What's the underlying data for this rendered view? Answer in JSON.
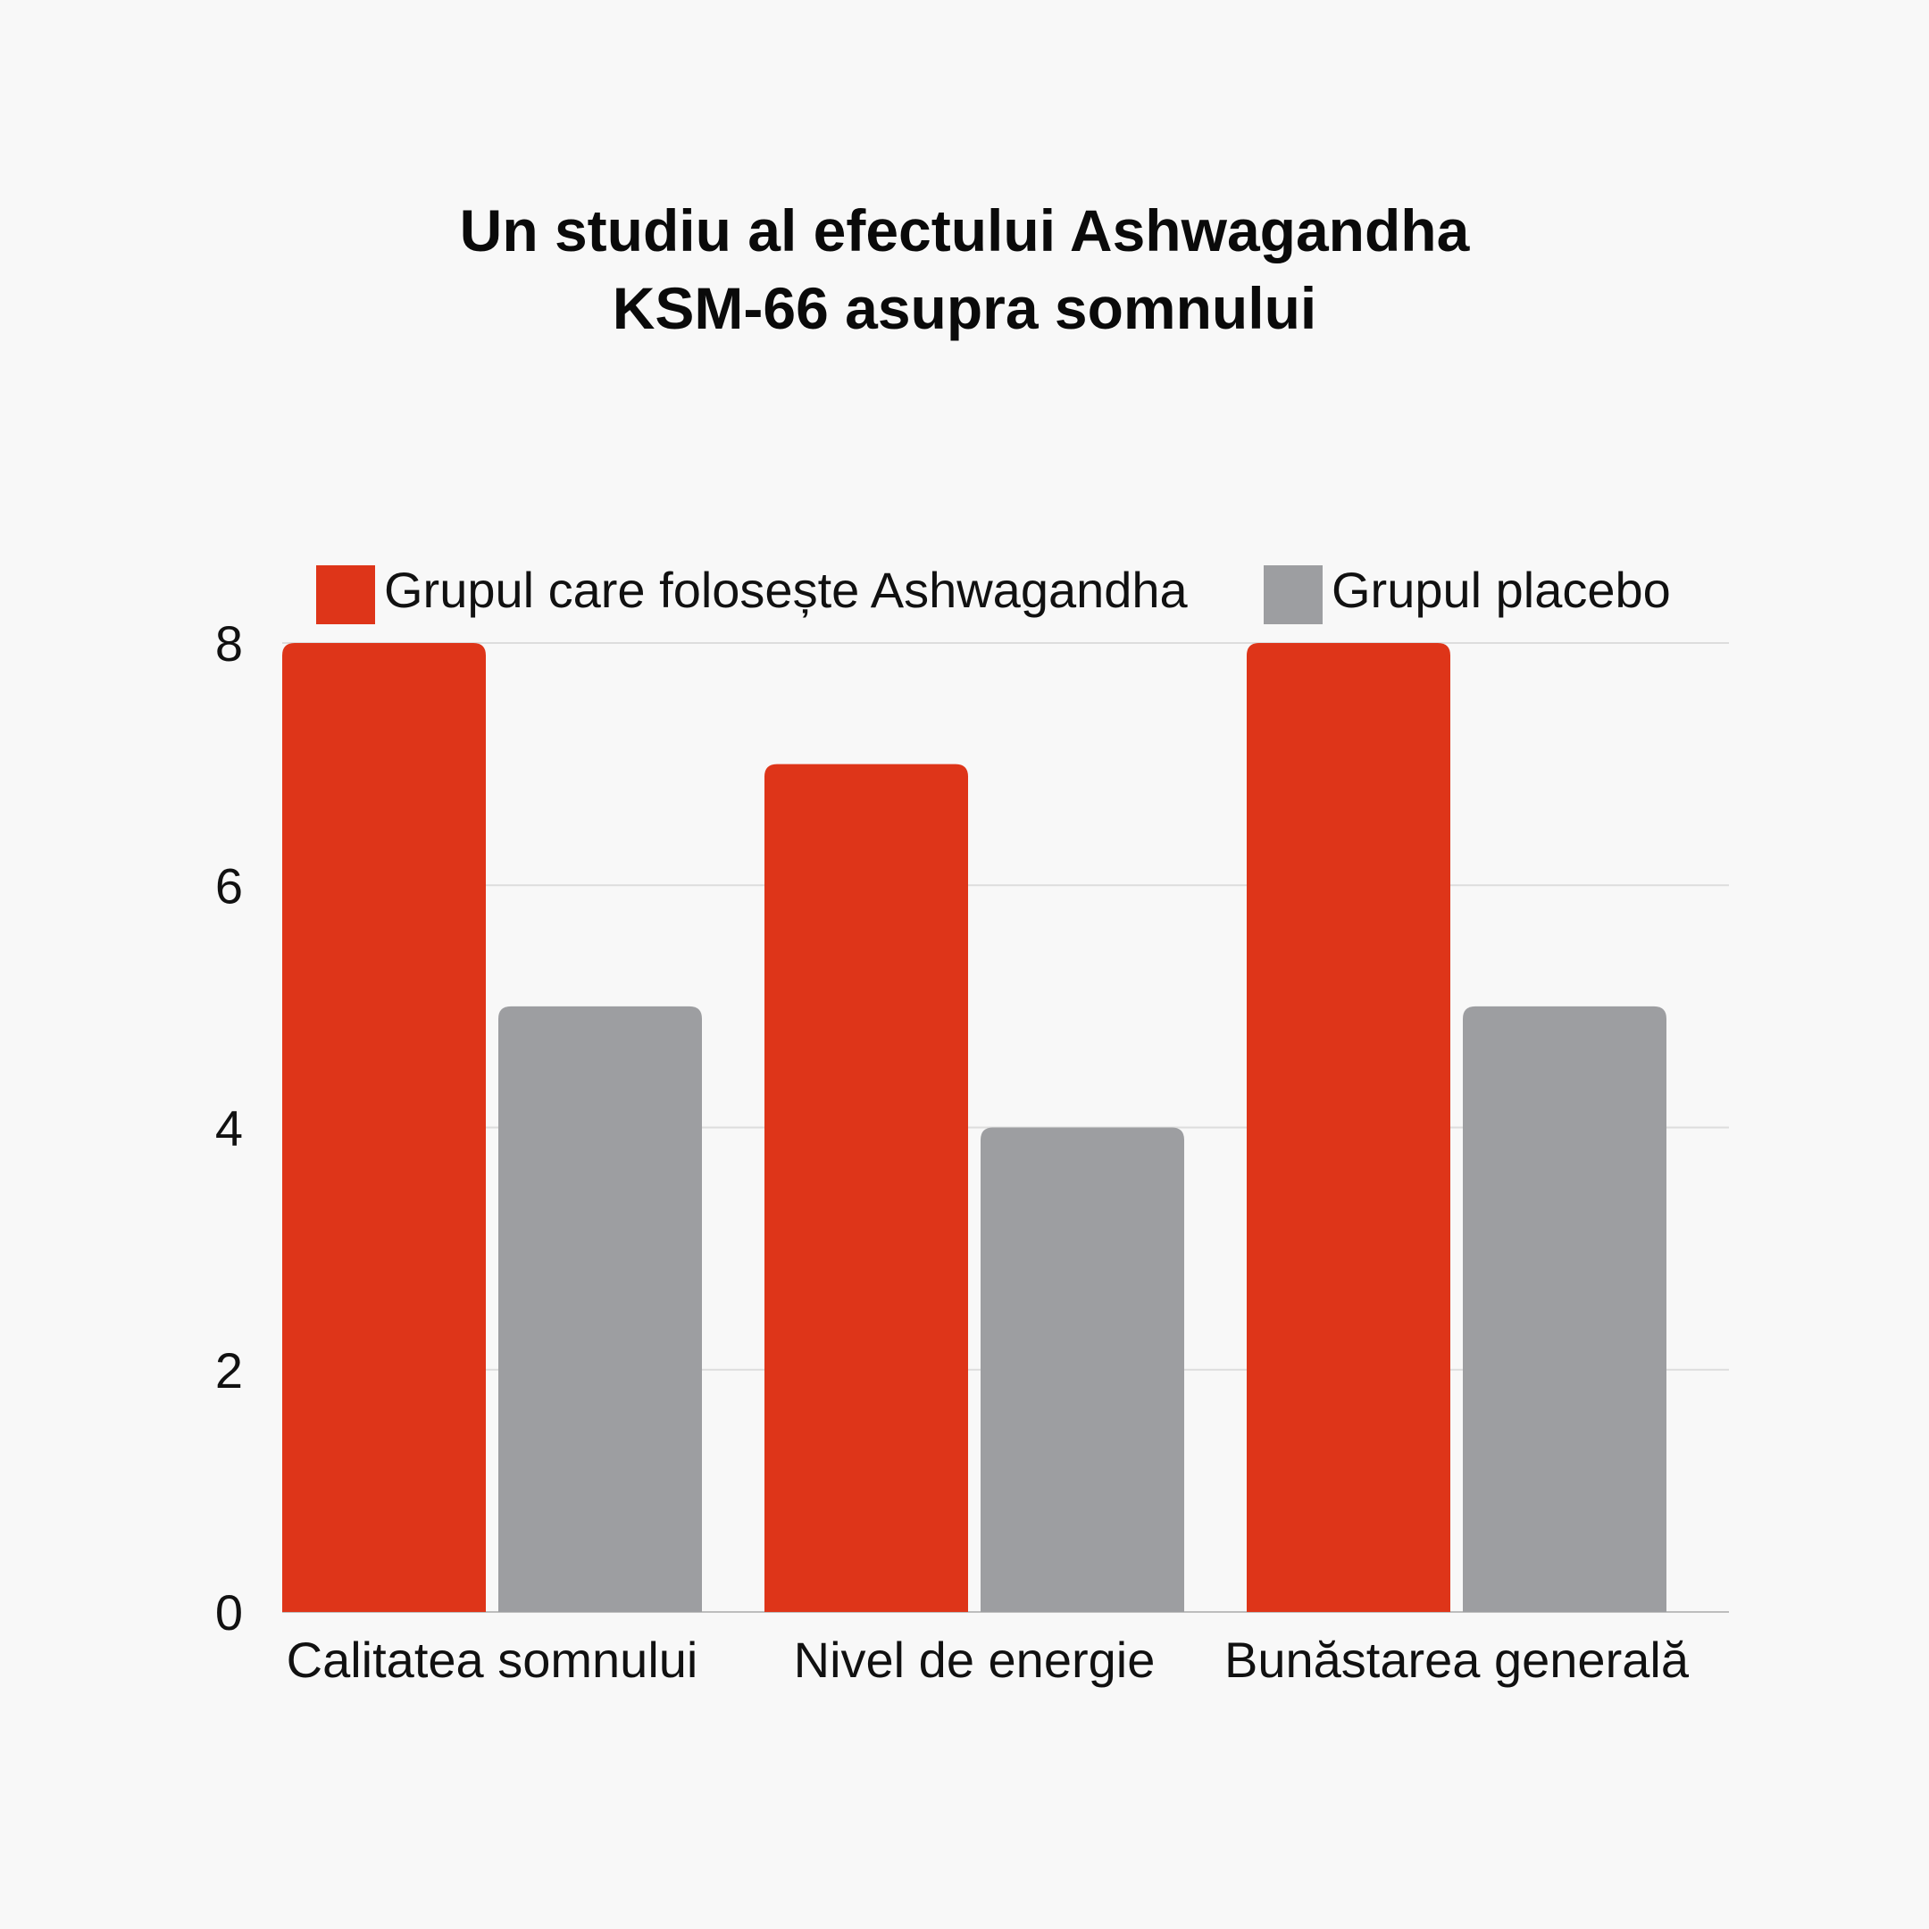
{
  "chart_data": {
    "type": "bar",
    "title_lines": [
      "Un studiu al efectului Ashwagandha",
      "KSM-66 asupra somnului"
    ],
    "categories": [
      "Calitatea somnului",
      "Nivel de energie",
      "Bunăstarea generală"
    ],
    "series": [
      {
        "name": "Grupul care folosește Ashwagandha",
        "values": [
          8,
          7,
          8
        ],
        "color": "#de3519"
      },
      {
        "name": "Grupul placebo",
        "values": [
          5,
          4,
          5
        ],
        "color": "#9d9ea1"
      }
    ],
    "ylim": [
      0,
      8
    ],
    "yticks": [
      "0",
      "2",
      "4",
      "6",
      "8"
    ],
    "grid": true,
    "legend_position": "top",
    "gridline_color": "#dddddd",
    "background_color": "#f8f8f8"
  }
}
